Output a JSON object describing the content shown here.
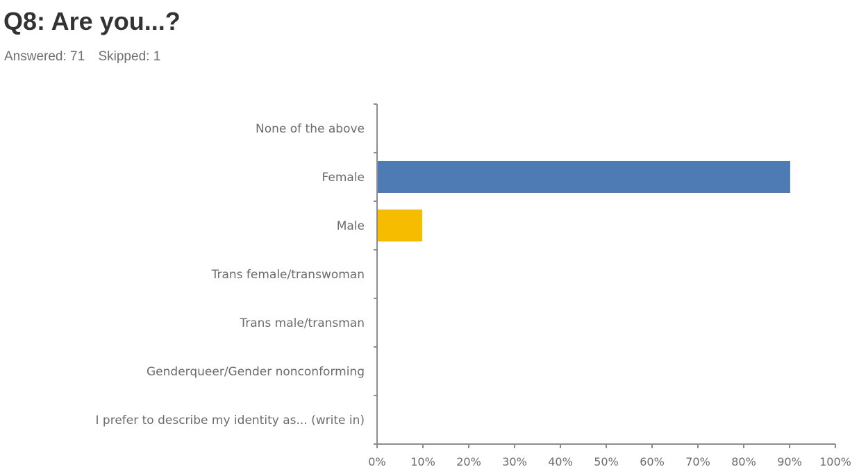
{
  "header": {
    "title": "Q8: Are you...?",
    "answered": "Answered: 71",
    "skipped": "Skipped: 1"
  },
  "chart_data": {
    "type": "bar",
    "orientation": "horizontal",
    "title": "Q8: Are you...?",
    "xlabel": "",
    "ylabel": "",
    "categories": [
      "None of the above",
      "Female",
      "Male",
      "Trans female/transwoman",
      "Trans male/transman",
      "Genderqueer/Gender nonconforming",
      "I prefer to describe my identity as... (write in)"
    ],
    "values": [
      0,
      90.14,
      9.86,
      0,
      0,
      0,
      0
    ],
    "bar_colors": [
      "#4f7bb5",
      "#4f7bb5",
      "#f5bc00",
      "#4f7bb5",
      "#4f7bb5",
      "#4f7bb5",
      "#4f7bb5"
    ],
    "xlim": [
      0,
      100
    ],
    "x_ticks": [
      "0%",
      "10%",
      "20%",
      "30%",
      "40%",
      "50%",
      "60%",
      "70%",
      "80%",
      "90%",
      "100%"
    ],
    "grid": false,
    "legend": "none"
  }
}
